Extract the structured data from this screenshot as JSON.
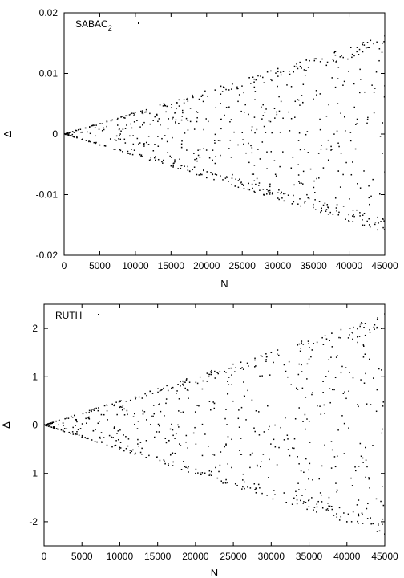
{
  "chart_data": [
    {
      "type": "scatter",
      "xlabel": "N",
      "ylabel": "Δ",
      "xlim": [
        0,
        45000
      ],
      "ylim": [
        -0.02,
        0.02
      ],
      "x_ticks": [
        0,
        5000,
        10000,
        15000,
        20000,
        25000,
        30000,
        35000,
        40000,
        45000
      ],
      "y_ticks": [
        -0.02,
        -0.01,
        0,
        0.01,
        0.02
      ],
      "x_tick_labels": [
        "0",
        "5000",
        "10000",
        "15000",
        "20000",
        "25000",
        "30000",
        "35000",
        "40000",
        "45000"
      ],
      "y_tick_labels": [
        "-0.02",
        "-0.01",
        "0",
        "0.01",
        "0.02"
      ],
      "legend": {
        "label": "SABAC",
        "label_subscript": "2",
        "placement": "top-left"
      },
      "envelope_slope": 3.6e-07,
      "grid": false,
      "marker_color": "#000000",
      "series": [
        {
          "name": "SABAC2",
          "x": [
            0,
            100,
            200,
            300,
            400,
            500,
            600,
            700,
            800,
            900,
            1000,
            1200,
            1400,
            1600,
            1800,
            2000,
            2500,
            3000,
            3500,
            4000,
            5000,
            6000,
            7000,
            8000,
            9000,
            10000,
            12000,
            14000,
            16000,
            18000,
            20000,
            22000,
            24000,
            26000,
            28000,
            30000,
            32000,
            34000,
            36000,
            38000,
            40000,
            42000,
            44000,
            45000,
            2500,
            6500,
            11000,
            16500,
            22500,
            27500,
            33500,
            38500,
            43500
          ],
          "y": [
            0,
            3e-05,
            -5e-05,
            8e-05,
            -0.0001,
            0.00015,
            -0.00018,
            0.0002,
            -0.00025,
            0.0003,
            -0.0003,
            0.0004,
            -0.0005,
            0.0006,
            -0.0006,
            0.0007,
            -0.0009,
            0.001,
            -0.0012,
            0.0014,
            -0.0018,
            0.0021,
            -0.0025,
            0.0028,
            -0.0032,
            0.0036,
            -0.0043,
            0.005,
            -0.0057,
            0.0064,
            -0.0072,
            0.0079,
            -0.0086,
            0.0093,
            -0.01,
            0.0108,
            -0.0115,
            0.0122,
            -0.0129,
            0.0136,
            -0.0144,
            0.0151,
            -0.0158,
            0.0162,
            0.0003,
            -0.0008,
            0.0015,
            -0.0022,
            0.0031,
            -0.0041,
            0.0052,
            -0.0061,
            0.0069
          ]
        }
      ]
    },
    {
      "type": "scatter",
      "xlabel": "N",
      "ylabel": "Δ",
      "xlim": [
        0,
        45000
      ],
      "ylim": [
        -2.5,
        2.5
      ],
      "x_ticks": [
        0,
        5000,
        10000,
        15000,
        20000,
        25000,
        30000,
        35000,
        40000,
        45000
      ],
      "y_ticks": [
        -2,
        -1,
        0,
        1,
        2
      ],
      "x_tick_labels": [
        "0",
        "5000",
        "10000",
        "15000",
        "20000",
        "25000",
        "30000",
        "35000",
        "40000",
        "45000"
      ],
      "y_tick_labels": [
        "-2",
        "-1",
        "0",
        "1",
        "2"
      ],
      "legend": {
        "label": "RUTH",
        "label_subscript": "",
        "placement": "top-left"
      },
      "envelope_slope": 5.1e-05,
      "grid": false,
      "marker_color": "#000000",
      "series": [
        {
          "name": "RUTH",
          "x": [
            0,
            100,
            200,
            300,
            400,
            500,
            600,
            700,
            800,
            900,
            1000,
            1200,
            1400,
            1600,
            1800,
            2000,
            2500,
            3000,
            3500,
            4000,
            5000,
            6000,
            7000,
            8000,
            9000,
            10000,
            12000,
            14000,
            16000,
            18000,
            20000,
            22000,
            24000,
            26000,
            28000,
            30000,
            32000,
            34000,
            36000,
            38000,
            40000,
            42000,
            44000,
            45000,
            2500,
            6500,
            11000,
            16500,
            22500,
            27500,
            33500,
            38500,
            43500
          ],
          "y": [
            0,
            0.005,
            -0.008,
            0.012,
            -0.015,
            0.022,
            -0.026,
            0.03,
            -0.036,
            0.042,
            -0.045,
            0.055,
            -0.065,
            0.08,
            -0.085,
            0.1,
            -0.12,
            0.14,
            -0.17,
            0.2,
            -0.25,
            0.3,
            -0.35,
            0.4,
            -0.45,
            0.5,
            -0.6,
            0.7,
            -0.8,
            0.9,
            -1.0,
            1.1,
            -1.2,
            1.3,
            -1.4,
            1.5,
            -1.6,
            1.7,
            -1.8,
            1.9,
            -2.0,
            2.1,
            -2.2,
            2.3,
            0.04,
            -0.12,
            0.22,
            -0.32,
            0.45,
            -0.58,
            0.74,
            -0.86,
            0.97
          ]
        }
      ]
    }
  ]
}
